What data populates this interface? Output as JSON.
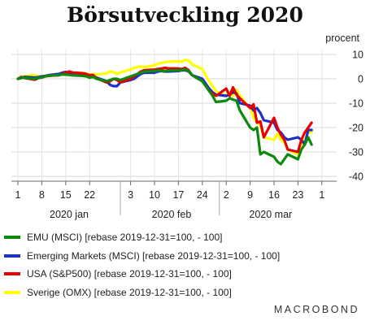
{
  "chart_data": {
    "type": "line",
    "title": "Börsutveckling 2020",
    "ylabel": "procent",
    "ylim": [
      -42,
      12
    ],
    "yticks": [
      10,
      0,
      -10,
      -20,
      -30,
      -40
    ],
    "xlim": [
      1,
      91
    ],
    "xticks": [
      {
        "x": 1,
        "label": "1"
      },
      {
        "x": 8,
        "label": "8"
      },
      {
        "x": 15,
        "label": "15"
      },
      {
        "x": 22,
        "label": "22"
      },
      {
        "x": 34,
        "label": "3"
      },
      {
        "x": 41,
        "label": "10"
      },
      {
        "x": 48,
        "label": "17"
      },
      {
        "x": 55,
        "label": "24"
      },
      {
        "x": 62,
        "label": "2"
      },
      {
        "x": 69,
        "label": "9"
      },
      {
        "x": 76,
        "label": "16"
      },
      {
        "x": 83,
        "label": "23"
      },
      {
        "x": 90,
        "label": "1"
      }
    ],
    "month_labels": [
      {
        "x": 16,
        "label": "2020 jan"
      },
      {
        "x": 46,
        "label": "2020 feb"
      },
      {
        "x": 75,
        "label": "2020 mar"
      }
    ],
    "grid": true,
    "legend_position": "bottom",
    "series": [
      {
        "name": "Sverige (OMX) [rebase 2019-12-31=100, - 100]",
        "color": "#ffff00",
        "x": [
          1,
          2,
          3,
          6,
          7,
          8,
          9,
          10,
          13,
          14,
          15,
          16,
          17,
          20,
          21,
          22,
          23,
          24,
          27,
          28,
          29,
          30,
          31,
          34,
          35,
          36,
          37,
          38,
          41,
          42,
          43,
          44,
          45,
          48,
          49,
          50,
          51,
          52,
          55,
          56,
          57,
          58,
          59,
          62,
          63,
          64,
          65,
          66,
          69,
          70,
          71,
          72,
          73,
          76,
          77,
          78,
          79,
          80,
          83,
          84,
          85,
          86,
          87
        ],
        "y": [
          0,
          0.5,
          1.2,
          1.5,
          1.2,
          0.8,
          1.2,
          1.5,
          1.7,
          1.8,
          1.6,
          2,
          2.2,
          2.4,
          2.2,
          1.6,
          2,
          1.8,
          2.2,
          3,
          2.8,
          2,
          2.6,
          3.8,
          4.5,
          4.8,
          5,
          4.8,
          5.5,
          6.2,
          6.5,
          6.8,
          7,
          7.2,
          7,
          7.8,
          7.5,
          6,
          4,
          1.5,
          -1,
          -3,
          -5,
          -7,
          -5.5,
          -7,
          -4.5,
          -7,
          -12,
          -16,
          -18,
          -19,
          -24,
          -25,
          -22.5,
          -25,
          -26,
          -29,
          -31,
          -28.5,
          -25,
          -22,
          -22
        ]
      },
      {
        "name": "Emerging Markets (MSCI) [rebase 2019-12-31=100, - 100]",
        "color": "#1c2fc9",
        "x": [
          1,
          2,
          3,
          6,
          7,
          8,
          9,
          10,
          13,
          14,
          15,
          16,
          17,
          20,
          21,
          22,
          23,
          24,
          27,
          28,
          29,
          30,
          31,
          34,
          35,
          36,
          37,
          38,
          41,
          42,
          43,
          44,
          45,
          48,
          49,
          50,
          51,
          52,
          55,
          56,
          57,
          58,
          59,
          62,
          63,
          64,
          65,
          66,
          69,
          70,
          71,
          72,
          73,
          76,
          77,
          78,
          79,
          80,
          83,
          84,
          85,
          86,
          87
        ],
        "y": [
          0,
          0.3,
          0.8,
          0.5,
          0.7,
          1,
          1.2,
          1.5,
          2,
          2.5,
          2.8,
          2.5,
          2.2,
          1.8,
          1.5,
          1,
          1,
          0.5,
          -1,
          -2.5,
          -3,
          -3,
          -1.5,
          -0.5,
          0,
          1,
          2,
          2.5,
          2.5,
          3,
          3.2,
          3,
          3,
          3.2,
          3.5,
          3.5,
          3,
          1.5,
          0,
          -2,
          -4,
          -5.5,
          -6.5,
          -7,
          -6.5,
          -5.5,
          -6,
          -10,
          -11,
          -13,
          -12,
          -14,
          -17,
          -18,
          -21,
          -22,
          -24,
          -25,
          -24,
          -25,
          -27,
          -21,
          -21
        ]
      },
      {
        "name": "USA (S&P500) [rebase 2019-12-31=100, - 100]",
        "color": "#e60000",
        "x": [
          1,
          2,
          3,
          6,
          7,
          8,
          9,
          10,
          13,
          14,
          15,
          16,
          17,
          20,
          21,
          22,
          23,
          24,
          27,
          28,
          29,
          30,
          31,
          34,
          35,
          36,
          37,
          38,
          41,
          42,
          43,
          44,
          45,
          48,
          49,
          50,
          51,
          52,
          55,
          56,
          57,
          58,
          59,
          62,
          63,
          64,
          65,
          66,
          69,
          70,
          71,
          72,
          73,
          76,
          77,
          78,
          79,
          80,
          83,
          84,
          85,
          86,
          87
        ],
        "y": [
          0,
          0.8,
          0.3,
          -0.4,
          0.3,
          0.5,
          1,
          1.2,
          1.5,
          2,
          2.5,
          3,
          2.6,
          2.3,
          2,
          1.5,
          1.6,
          0.2,
          -1.5,
          -1,
          0,
          -0.5,
          -1.5,
          0,
          1,
          2,
          3,
          3.5,
          3.8,
          4,
          4.2,
          4.5,
          4.3,
          4.2,
          4,
          4.5,
          3.5,
          1.5,
          -1,
          -3,
          -5,
          -6,
          -7,
          -4,
          -7,
          -3.5,
          -6.5,
          -8,
          -12,
          -10.5,
          -18,
          -17.5,
          -24,
          -16,
          -20,
          -23,
          -25,
          -29,
          -30,
          -25,
          -22,
          -20,
          -18
        ]
      },
      {
        "name": "EMU (MSCI) [rebase 2019-12-31=100, - 100]",
        "color": "#0c8a0c",
        "x": [
          1,
          2,
          3,
          6,
          7,
          8,
          9,
          10,
          13,
          14,
          15,
          16,
          17,
          20,
          21,
          22,
          23,
          24,
          27,
          28,
          29,
          30,
          31,
          34,
          35,
          36,
          37,
          38,
          41,
          42,
          43,
          44,
          45,
          48,
          49,
          50,
          51,
          52,
          55,
          56,
          57,
          58,
          59,
          62,
          63,
          64,
          65,
          66,
          69,
          70,
          71,
          72,
          73,
          76,
          77,
          78,
          79,
          80,
          83,
          84,
          85,
          86,
          87
        ],
        "y": [
          0,
          0.5,
          0.4,
          0,
          0.3,
          0.6,
          1,
          1.3,
          1.5,
          1.8,
          1.7,
          1.6,
          1.4,
          1.2,
          1,
          0.5,
          0.8,
          0,
          -1,
          -0.5,
          0,
          0,
          -0.5,
          1,
          1.5,
          2,
          2.5,
          3,
          3.2,
          3.5,
          3.3,
          3.2,
          3.4,
          3.5,
          3.6,
          3.8,
          3.2,
          1.5,
          -1,
          -3,
          -5,
          -7,
          -9.5,
          -9,
          -8,
          -8.5,
          -9,
          -13,
          -20,
          -21,
          -20,
          -31,
          -30,
          -32,
          -34,
          -35,
          -33,
          -31,
          -33,
          -29,
          -27,
          -24,
          -27
        ]
      }
    ]
  },
  "legend": {
    "items": [
      {
        "label": "EMU (MSCI) [rebase 2019-12-31=100, - 100]",
        "color": "#0c8a0c"
      },
      {
        "label": "Emerging Markets (MSCI) [rebase 2019-12-31=100, - 100]",
        "color": "#1c2fc9"
      },
      {
        "label": "USA (S&P500) [rebase 2019-12-31=100, - 100]",
        "color": "#e60000"
      },
      {
        "label": "Sverige (OMX) [rebase 2019-12-31=100, - 100]",
        "color": "#ffff00"
      }
    ]
  },
  "watermark": "MACROBOND"
}
